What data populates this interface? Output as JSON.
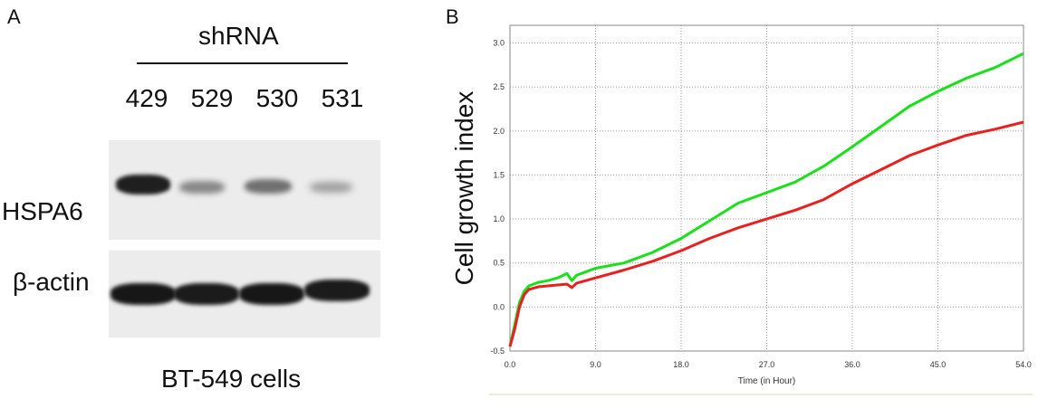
{
  "panel_a": {
    "letter": "A",
    "shrna_title": "shRNA",
    "lanes": [
      "429",
      "529",
      "530",
      "531"
    ],
    "hspa6_label": "HSPA6",
    "actin_label": "β-actin",
    "caption": "BT-549 cells",
    "hspa6_band_intensity": [
      1.0,
      0.35,
      0.5,
      0.2
    ],
    "actin_band_intensity": [
      1.0,
      0.95,
      1.0,
      0.95
    ]
  },
  "panel_b": {
    "letter": "B"
  },
  "chart_data": {
    "type": "line",
    "title": "",
    "xlabel": "Time (in Hour)",
    "ylabel": "Cell growth index",
    "xlim": [
      0,
      54
    ],
    "ylim": [
      -0.5,
      3.2
    ],
    "xticks": [
      "0.0",
      "9.0",
      "18.0",
      "27.0",
      "36.0",
      "45.0",
      "54.0"
    ],
    "yticks": [
      "-0.5",
      "0.0",
      "0.5",
      "1.0",
      "1.5",
      "2.0",
      "2.5",
      "3.0"
    ],
    "grid": true,
    "legend": "none",
    "series": [
      {
        "color": "#19e019",
        "x": [
          0,
          0.5,
          1,
          1.5,
          2,
          3,
          4,
          5,
          6,
          6.5,
          7,
          9,
          12,
          15,
          18,
          21,
          24,
          27,
          30,
          33,
          36,
          39,
          42,
          45,
          48,
          51,
          54
        ],
        "y": [
          -0.45,
          -0.2,
          0.05,
          0.18,
          0.24,
          0.28,
          0.3,
          0.33,
          0.38,
          0.3,
          0.36,
          0.44,
          0.5,
          0.62,
          0.78,
          0.98,
          1.18,
          1.3,
          1.42,
          1.6,
          1.82,
          2.05,
          2.28,
          2.45,
          2.6,
          2.72,
          2.88
        ]
      },
      {
        "color": "#e82020",
        "x": [
          0,
          0.5,
          1,
          1.5,
          2,
          3,
          4,
          5,
          6,
          6.5,
          7,
          9,
          12,
          15,
          18,
          21,
          24,
          27,
          30,
          33,
          36,
          39,
          42,
          45,
          48,
          51,
          54
        ],
        "y": [
          -0.45,
          -0.25,
          0.0,
          0.14,
          0.2,
          0.23,
          0.24,
          0.25,
          0.26,
          0.22,
          0.27,
          0.33,
          0.42,
          0.52,
          0.64,
          0.78,
          0.9,
          1.0,
          1.1,
          1.22,
          1.4,
          1.56,
          1.72,
          1.84,
          1.95,
          2.02,
          2.1
        ]
      }
    ]
  }
}
